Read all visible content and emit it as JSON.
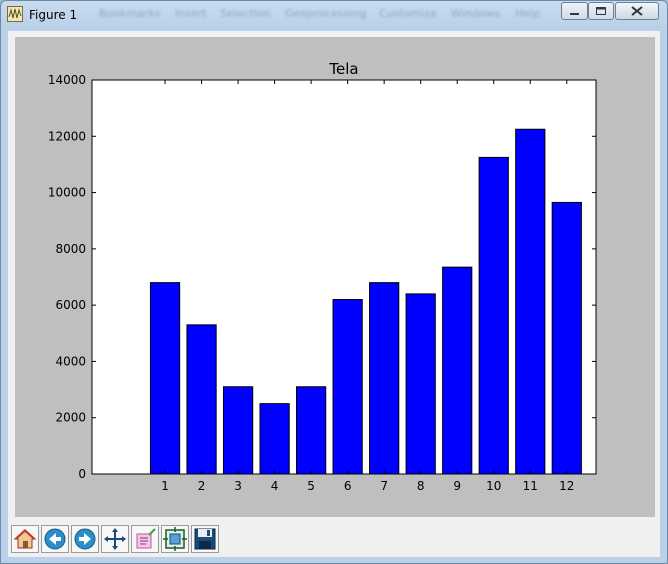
{
  "window": {
    "title": "Figure 1",
    "menu_ghost": [
      "Bookmarks",
      "Insert",
      "Selection",
      "Geoprocessing",
      "Customize",
      "Windows",
      "Help"
    ]
  },
  "chart_data": {
    "type": "bar",
    "title": "Tela",
    "xlabel": "",
    "ylabel": "",
    "categories": [
      "1",
      "2",
      "3",
      "4",
      "5",
      "6",
      "7",
      "8",
      "9",
      "10",
      "11",
      "12"
    ],
    "values": [
      6800,
      5300,
      3100,
      2500,
      3100,
      6200,
      6800,
      6400,
      7350,
      11250,
      12250,
      9650
    ],
    "ylim": [
      0,
      14000
    ],
    "yticks": [
      0,
      2000,
      4000,
      6000,
      8000,
      10000,
      12000,
      14000
    ],
    "xlim": [
      -1,
      12.8
    ],
    "bar_color": "#0000ff",
    "grid": false,
    "legend": "none"
  },
  "toolbar": {
    "buttons": [
      {
        "name": "home-icon"
      },
      {
        "name": "back-arrow-icon"
      },
      {
        "name": "forward-arrow-icon"
      },
      {
        "name": "pan-icon"
      },
      {
        "name": "zoom-rect-icon"
      },
      {
        "name": "configure-subplots-icon"
      },
      {
        "name": "save-icon"
      }
    ]
  },
  "colors": {
    "figure_background": "#bfbfbf",
    "axes_background": "#ffffff",
    "bar": "#0000ff"
  }
}
